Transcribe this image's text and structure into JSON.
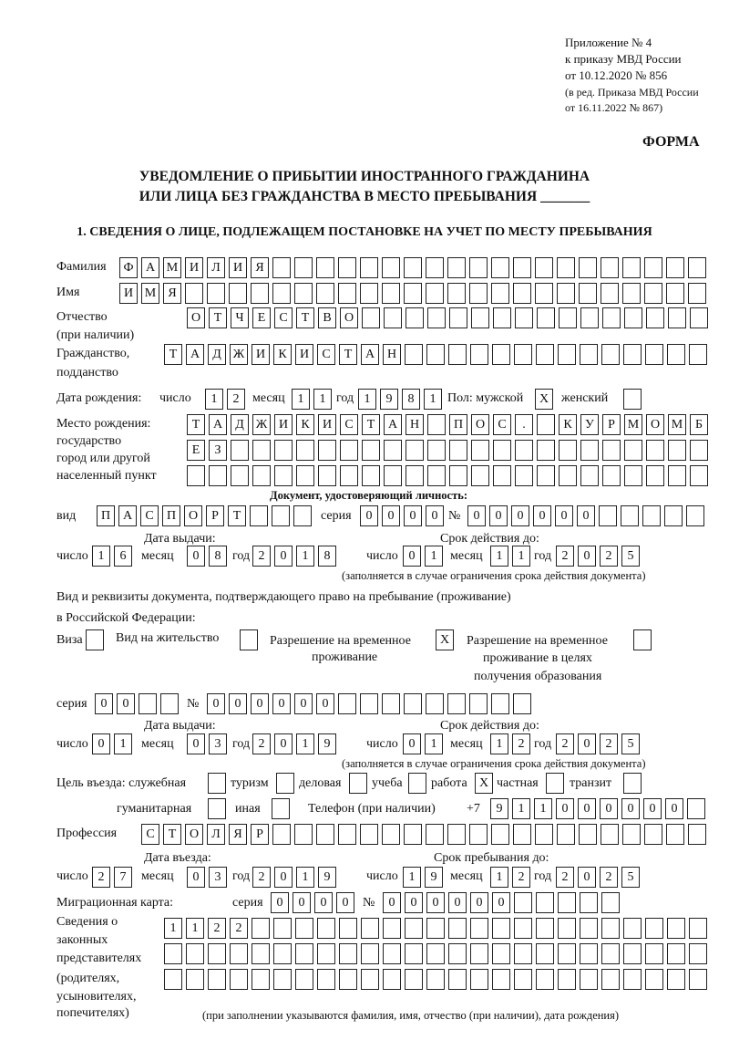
{
  "header": {
    "line1": "Приложение № 4",
    "line2": "к приказу МВД России",
    "line3": "от 10.12.2020 № 856",
    "line4": "(в ред. Приказа МВД России",
    "line5": "от 16.11.2022 № 867)",
    "form_label": "ФОРМА",
    "title1": "УВЕДОМЛЕНИЕ О ПРИБЫТИИ ИНОСТРАННОГО ГРАЖДАНИНА",
    "title2": "ИЛИ ЛИЦА БЕЗ ГРАЖДАНСТВА В МЕСТО ПРЕБЫВАНИЯ _______",
    "section1": "1. СВЕДЕНИЯ О ЛИЦЕ, ПОДЛЕЖАЩЕМ ПОСТАНОВКЕ НА УЧЕТ ПО МЕСТУ ПРЕБЫВАНИЯ"
  },
  "labels": {
    "surname": "Фамилия",
    "name": "Имя",
    "patronymic": "Отчество",
    "patronymic_note": "(при наличии)",
    "citizenship": "Гражданство,",
    "citizenship2": "подданство",
    "birth_date": "Дата рождения:",
    "day": "число",
    "month": "месяц",
    "year": "год",
    "sex_male": "Пол: мужской",
    "sex_female": "женский",
    "birthplace1": "Место рождения:",
    "birthplace2": "государство",
    "birthplace3": "город или другой",
    "birthplace4": "населенный пункт",
    "id_doc": "Документ, удостоверяющий личность:",
    "kind": "вид",
    "series": "серия",
    "number": "№",
    "issue_date": "Дата выдачи:",
    "valid_until": "Срок действия до:",
    "valid_note": "(заполняется в случае ограничения срока действия документа)",
    "right_doc1": "Вид и реквизиты документа, подтверждающего право на пребывание (проживание)",
    "right_doc2": "в Российской Федерации:",
    "visa": "Виза",
    "residence": "Вид на жительство",
    "trp1": "Разрешение на временное",
    "trp2": "проживание",
    "trpe1": "Разрешение на временное",
    "trpe2": "проживание в целях",
    "trpe3": "получения образования",
    "purpose": "Цель въезда: служебная",
    "tourism": "туризм",
    "business": "деловая",
    "study": "учеба",
    "work": "работа",
    "private": "частная",
    "transit": "транзит",
    "humanitarian": "гуманитарная",
    "other": "иная",
    "phone": "Телефон (при наличии)",
    "phone_prefix": "+7",
    "profession": "Профессия",
    "entry_date": "Дата въезда:",
    "stay_until": "Срок пребывания до:",
    "migration_card": "Миграционная карта:",
    "reps1": "Сведения о",
    "reps2": "законных",
    "reps3": "представителях",
    "reps4": "(родителях,",
    "reps5": "усыновителях,",
    "reps6": "попечителях)",
    "reps_note": "(при заполнении указываются фамилия, имя, отчество (при наличии), дата рождения)"
  },
  "fields": {
    "surname": {
      "value": "ФАМИЛИЯ",
      "cells": 27
    },
    "name": {
      "value": "ИМЯ",
      "cells": 27
    },
    "patronymic": {
      "value": "ОТЧЕСТВО",
      "cells": 24
    },
    "citizenship": {
      "value": "ТАДЖИКИСТАН",
      "cells": 25
    },
    "birth_day": {
      "value": "12",
      "cells": 2
    },
    "birth_month": {
      "value": "11",
      "cells": 2
    },
    "birth_year": {
      "value": "1981",
      "cells": 4
    },
    "sex_male": {
      "value": "X",
      "cells": 1
    },
    "sex_female": {
      "value": "",
      "cells": 1
    },
    "birthplace_1": {
      "value": "ТАДЖИКИСТАН ПОС. КУРМОМБ",
      "cells": 24
    },
    "birthplace_2": {
      "value": "ЕЗ",
      "cells": 24
    },
    "birthplace_3": {
      "value": "",
      "cells": 24
    },
    "id_kind": {
      "value": "ПАСПОРТ",
      "cells": 10
    },
    "id_series": {
      "value": "0000",
      "cells": 4
    },
    "id_number": {
      "value": "000000",
      "cells": 11
    },
    "id_issue_day": {
      "value": "16",
      "cells": 2
    },
    "id_issue_month": {
      "value": "08",
      "cells": 2
    },
    "id_issue_year": {
      "value": "2018",
      "cells": 4
    },
    "id_valid_day": {
      "value": "01",
      "cells": 2
    },
    "id_valid_month": {
      "value": "11",
      "cells": 2
    },
    "id_valid_year": {
      "value": "2025",
      "cells": 4
    },
    "visa": {
      "value": "",
      "cells": 1
    },
    "residence": {
      "value": "",
      "cells": 1
    },
    "trp": {
      "value": "X",
      "cells": 1
    },
    "trpe": {
      "value": "",
      "cells": 1
    },
    "rd_series": {
      "value": "00",
      "cells": 4
    },
    "rd_number": {
      "value": "000000",
      "cells": 15
    },
    "rd_issue_day": {
      "value": "01",
      "cells": 2
    },
    "rd_issue_month": {
      "value": "03",
      "cells": 2
    },
    "rd_issue_year": {
      "value": "2019",
      "cells": 4
    },
    "rd_valid_day": {
      "value": "01",
      "cells": 2
    },
    "rd_valid_month": {
      "value": "12",
      "cells": 2
    },
    "rd_valid_year": {
      "value": "2025",
      "cells": 4
    },
    "p_official": {
      "value": "",
      "cells": 1
    },
    "p_tourism": {
      "value": "",
      "cells": 1
    },
    "p_business": {
      "value": "",
      "cells": 1
    },
    "p_study": {
      "value": "",
      "cells": 1
    },
    "p_work": {
      "value": "X",
      "cells": 1
    },
    "p_private": {
      "value": "",
      "cells": 1
    },
    "p_transit": {
      "value": "",
      "cells": 1
    },
    "p_humanitarian": {
      "value": "",
      "cells": 1
    },
    "p_other": {
      "value": "",
      "cells": 1
    },
    "phone": {
      "value": "911000000",
      "cells": 10
    },
    "profession": {
      "value": "СТОЛЯР",
      "cells": 26
    },
    "entry_day": {
      "value": "27",
      "cells": 2
    },
    "entry_month": {
      "value": "03",
      "cells": 2
    },
    "entry_year": {
      "value": "2019",
      "cells": 4
    },
    "stay_day": {
      "value": "19",
      "cells": 2
    },
    "stay_month": {
      "value": "12",
      "cells": 2
    },
    "stay_year": {
      "value": "2025",
      "cells": 4
    },
    "mc_series": {
      "value": "0000",
      "cells": 4
    },
    "mc_number": {
      "value": "000000",
      "cells": 11
    },
    "reps_1": {
      "value": "1122",
      "cells": 25
    },
    "reps_2": {
      "value": "",
      "cells": 25
    },
    "reps_3": {
      "value": "",
      "cells": 25
    }
  }
}
